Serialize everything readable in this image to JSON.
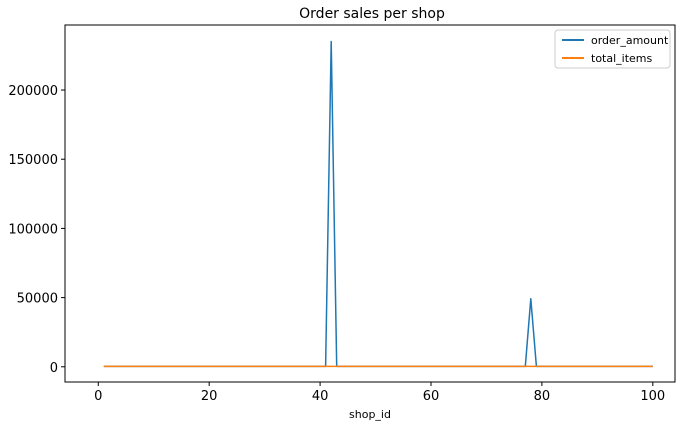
{
  "chart_data": {
    "type": "line",
    "title": "Order sales per shop",
    "xlabel": "shop_id",
    "ylabel": "",
    "xlim": [
      -6,
      104
    ],
    "ylim": [
      -11000,
      247000
    ],
    "xticks": [
      0,
      20,
      40,
      60,
      80,
      100
    ],
    "yticks": [
      0,
      50000,
      100000,
      150000,
      200000
    ],
    "legend_position": "top-right",
    "grid": false,
    "series": [
      {
        "name": "order_amount",
        "color": "#1f77b4",
        "points": [
          [
            1,
            300
          ],
          [
            41,
            300
          ],
          [
            42,
            235101
          ],
          [
            43,
            300
          ],
          [
            77,
            300
          ],
          [
            78,
            49213
          ],
          [
            79,
            300
          ],
          [
            100,
            300
          ]
        ]
      },
      {
        "name": "total_items",
        "color": "#ff7f0e",
        "points": [
          [
            1,
            250
          ],
          [
            100,
            250
          ]
        ]
      }
    ]
  }
}
